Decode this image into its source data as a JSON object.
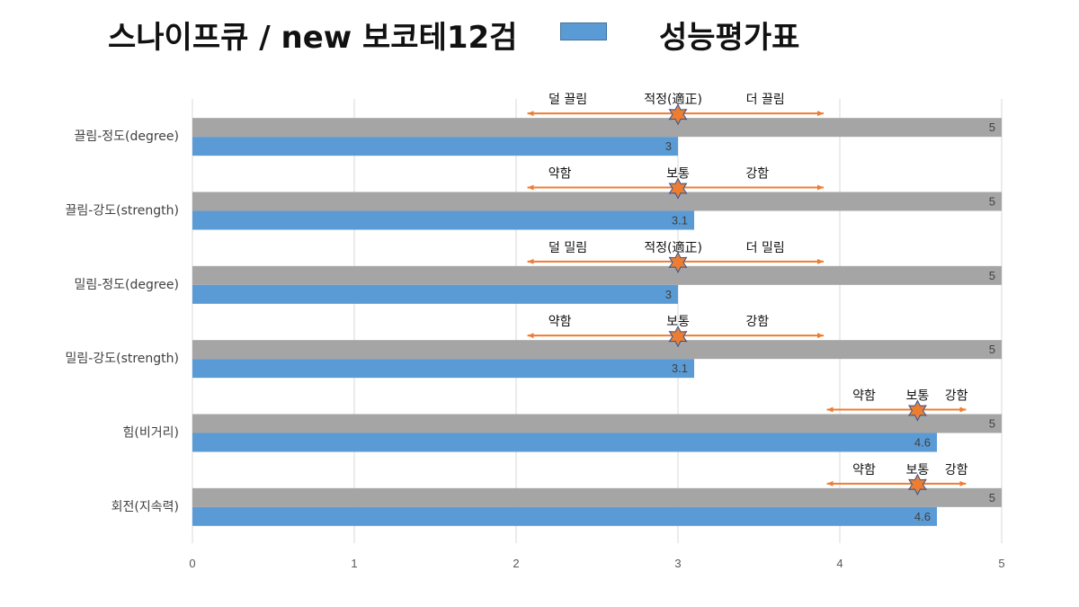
{
  "title": {
    "left": "스나이프큐 / new 보코테12검",
    "right": "성능평가표"
  },
  "chart_data": {
    "type": "bar",
    "orientation": "horizontal",
    "categories": [
      "끌림-정도(degree)",
      "끌림-강도(strength)",
      "밀림-정도(degree)",
      "밀림-강도(strength)",
      "힘(비거리)",
      "회전(지속력)"
    ],
    "series": [
      {
        "color": "#a5a5a5",
        "values": [
          5,
          5,
          5,
          5,
          5,
          5
        ]
      },
      {
        "color": "#5b9bd5",
        "values": [
          3,
          3.1,
          3,
          3.1,
          4.6,
          4.6
        ]
      }
    ],
    "data_labels": {
      "gray": [
        "5",
        "5",
        "5",
        "5",
        "5",
        "5"
      ],
      "blue": [
        "3",
        "3.1",
        "3",
        "3.1",
        "4.6",
        "4.6"
      ]
    },
    "xlim": [
      0,
      5
    ],
    "xticks": [
      0,
      1,
      2,
      3,
      4,
      5
    ],
    "xtick_labels": [
      "0",
      "1",
      "2",
      "3",
      "4",
      "5"
    ],
    "grid": "vertical",
    "legend": "top-center",
    "annotation_color": "#ed7d31",
    "annotations": [
      {
        "marker": 3,
        "arrow_from": 2.07,
        "arrow_to": 3.9,
        "labels": [
          {
            "text": "덜 끌림",
            "x": 2.32
          },
          {
            "text": "적정(適正)",
            "x": 2.97
          },
          {
            "text": "더 끌림",
            "x": 3.54
          }
        ]
      },
      {
        "marker": 3,
        "arrow_from": 2.07,
        "arrow_to": 3.9,
        "labels": [
          {
            "text": "약함",
            "x": 2.27
          },
          {
            "text": "보통",
            "x": 3.0
          },
          {
            "text": "강함",
            "x": 3.49
          }
        ]
      },
      {
        "marker": 3,
        "arrow_from": 2.07,
        "arrow_to": 3.9,
        "labels": [
          {
            "text": "덜 밀림",
            "x": 2.32
          },
          {
            "text": "적정(適正)",
            "x": 2.97
          },
          {
            "text": "더 밀림",
            "x": 3.54
          }
        ]
      },
      {
        "marker": 3,
        "arrow_from": 2.07,
        "arrow_to": 3.9,
        "labels": [
          {
            "text": "약함",
            "x": 2.27
          },
          {
            "text": "보통",
            "x": 3.0
          },
          {
            "text": "강함",
            "x": 3.49
          }
        ]
      },
      {
        "marker": 4.48,
        "arrow_from": 3.92,
        "arrow_to": 4.78,
        "labels": [
          {
            "text": "약함",
            "x": 4.15
          },
          {
            "text": "보통",
            "x": 4.48
          },
          {
            "text": "강함",
            "x": 4.72
          }
        ]
      },
      {
        "marker": 4.48,
        "arrow_from": 3.92,
        "arrow_to": 4.78,
        "labels": [
          {
            "text": "약함",
            "x": 4.15
          },
          {
            "text": "보통",
            "x": 4.48
          },
          {
            "text": "강함",
            "x": 4.72
          }
        ]
      }
    ]
  }
}
